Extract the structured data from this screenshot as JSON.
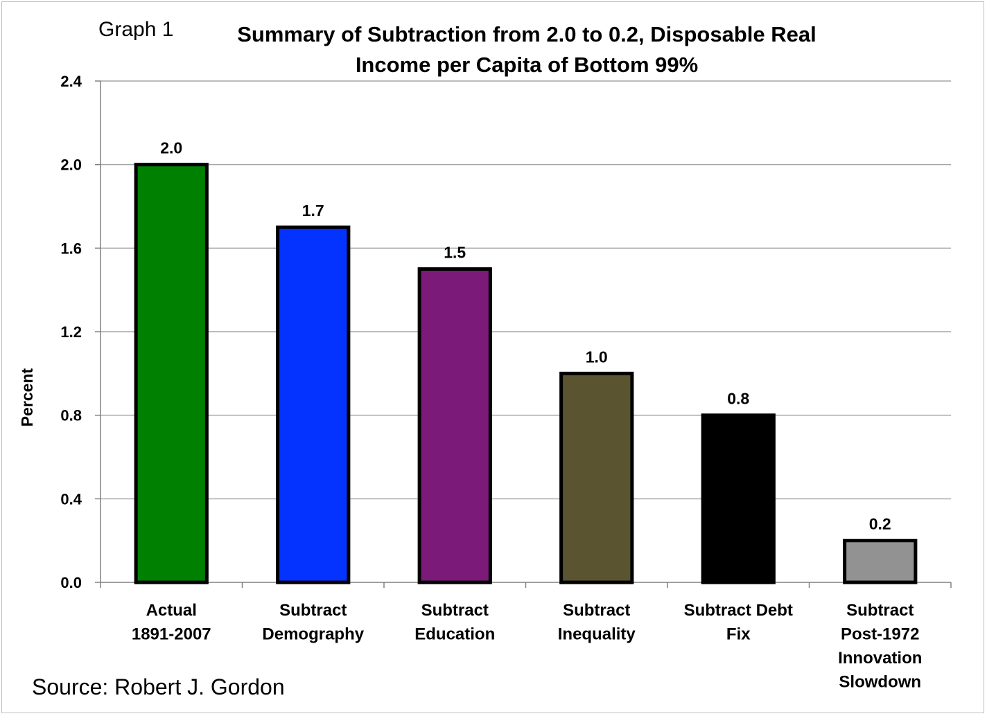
{
  "header": {
    "graph_label": "Graph 1",
    "title": "Summary of Subtraction from 2.0 to 0.2, Disposable Real Income per Capita of Bottom 99%"
  },
  "footer": {
    "source": "Source: Robert J. Gordon"
  },
  "chart_data": {
    "type": "bar",
    "title": "Summary of Subtraction from 2.0 to 0.2, Disposable Real Income per Capita of Bottom 99%",
    "xlabel": "",
    "ylabel": "Percent",
    "ylim": [
      0,
      2.4
    ],
    "yticks": [
      "0.0",
      "0.4",
      "0.8",
      "1.2",
      "1.6",
      "2.0",
      "2.4"
    ],
    "grid": true,
    "categories": [
      [
        "Actual",
        "1891-2007"
      ],
      [
        "Subtract",
        "Demography"
      ],
      [
        "Subtract",
        "Education"
      ],
      [
        "Subtract",
        "Inequality"
      ],
      [
        "Subtract Debt",
        "Fix"
      ],
      [
        "Subtract",
        "Post-1972",
        "Innovation",
        "Slowdown"
      ]
    ],
    "values": [
      2.0,
      1.7,
      1.5,
      1.0,
      0.8,
      0.2
    ],
    "value_labels": [
      "2.0",
      "1.7",
      "1.5",
      "1.0",
      "0.8",
      "0.2"
    ],
    "colors": [
      "#008000",
      "#0433ff",
      "#7b1a78",
      "#5b5431",
      "#000000",
      "#929292"
    ]
  }
}
